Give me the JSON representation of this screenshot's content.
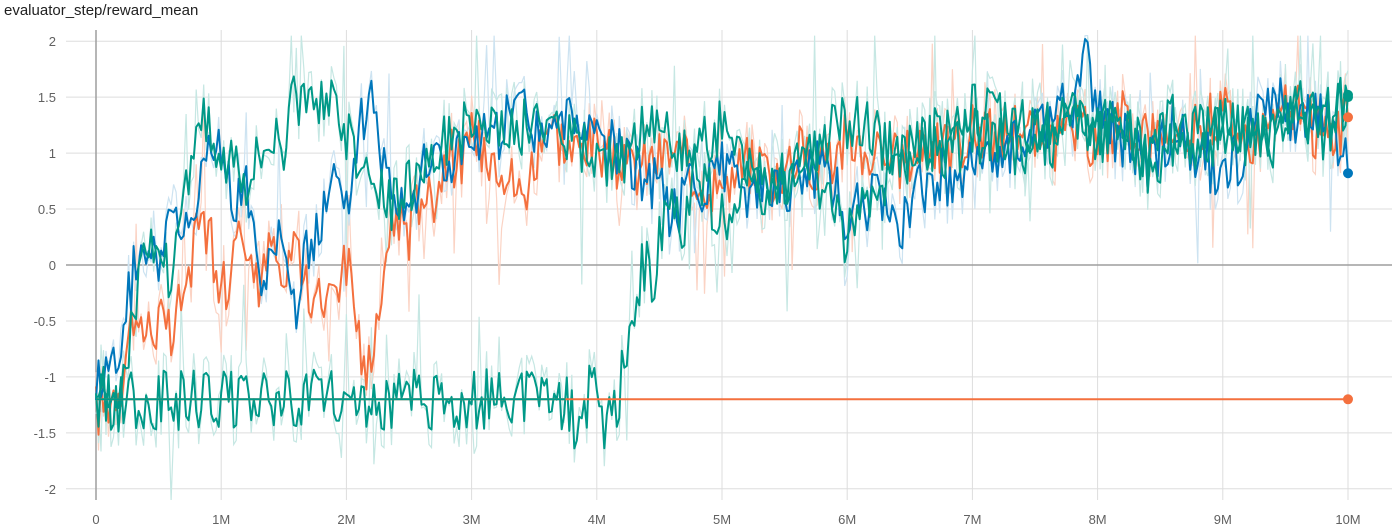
{
  "chart_data": {
    "type": "line",
    "title": "evaluator_step/reward_mean",
    "xlabel": "",
    "ylabel": "",
    "xlim": [
      0,
      10000000
    ],
    "ylim": [
      -2.1,
      2.1
    ],
    "x_ticks": [
      {
        "value": 0,
        "label": "0"
      },
      {
        "value": 1000000,
        "label": "1M"
      },
      {
        "value": 2000000,
        "label": "2M"
      },
      {
        "value": 3000000,
        "label": "3M"
      },
      {
        "value": 4000000,
        "label": "4M"
      },
      {
        "value": 5000000,
        "label": "5M"
      },
      {
        "value": 6000000,
        "label": "6M"
      },
      {
        "value": 7000000,
        "label": "7M"
      },
      {
        "value": 8000000,
        "label": "8M"
      },
      {
        "value": 9000000,
        "label": "9M"
      },
      {
        "value": 10000000,
        "label": "10M"
      }
    ],
    "y_ticks": [
      {
        "value": 2,
        "label": "2"
      },
      {
        "value": 1.5,
        "label": "1.5"
      },
      {
        "value": 1,
        "label": "1"
      },
      {
        "value": 0.5,
        "label": "0.5"
      },
      {
        "value": 0,
        "label": "0"
      },
      {
        "value": -0.5,
        "label": "-0.5"
      },
      {
        "value": -1,
        "label": "-1"
      },
      {
        "value": -1.5,
        "label": "-1.5"
      },
      {
        "value": -2,
        "label": "-2"
      }
    ],
    "grid": true,
    "series": [
      {
        "color": "#f4703e",
        "raw_color": "#fbd3c4",
        "x": [
          0,
          100000,
          200000,
          300000,
          400000,
          500000,
          600000,
          700000,
          800000,
          900000,
          1000000,
          1100000,
          1200000,
          1300000,
          1400000,
          1500000,
          1600000,
          1700000,
          1800000,
          1900000,
          2000000,
          2100000,
          2150000,
          2200000,
          2300000,
          2400000,
          2500000,
          2600000,
          2700000,
          2800000,
          2900000,
          3000000,
          3200000,
          3400000,
          3600000,
          3800000,
          4000000,
          4200000,
          4400000,
          4600000,
          4800000,
          5000000,
          5200000,
          5400000,
          5600000,
          5800000,
          6000000,
          6200000,
          6400000,
          6600000,
          6800000,
          7000000,
          7200000,
          7400000,
          7600000,
          7800000,
          8000000,
          8200000,
          8400000,
          8600000,
          8800000,
          9000000,
          9200000,
          9400000,
          9600000,
          9800000,
          9900000,
          10000000
        ],
        "values": [
          -1.3,
          -1.2,
          -1.0,
          -0.4,
          -0.6,
          -0.5,
          -0.7,
          -0.2,
          0.2,
          0.4,
          -0.3,
          0.1,
          0.3,
          -0.3,
          0.2,
          -0.2,
          0.3,
          -0.4,
          -0.3,
          -0.1,
          0.0,
          -0.6,
          -1.1,
          -0.7,
          -0.1,
          0.5,
          0.3,
          0.7,
          0.6,
          1.0,
          0.9,
          1.1,
          1.0,
          0.6,
          1.3,
          1.0,
          1.1,
          0.8,
          0.9,
          1.0,
          0.8,
          0.7,
          0.9,
          0.8,
          1.0,
          0.9,
          1.1,
          1.0,
          0.9,
          1.1,
          1.0,
          1.2,
          1.1,
          1.3,
          1.0,
          1.2,
          1.1,
          1.3,
          1.2,
          1.0,
          1.2,
          1.4,
          1.1,
          1.3,
          1.4,
          1.1,
          1.2,
          1.32
        ]
      },
      {
        "color": "#0077bb",
        "raw_color": "#cde3f1",
        "x": [
          0,
          100000,
          200000,
          300000,
          400000,
          500000,
          600000,
          700000,
          800000,
          900000,
          1000000,
          1100000,
          1200000,
          1300000,
          1400000,
          1500000,
          1600000,
          1700000,
          1800000,
          1900000,
          2000000,
          2100000,
          2200000,
          2300000,
          2400000,
          2500000,
          2600000,
          2700000,
          2800000,
          2900000,
          3000000,
          3200000,
          3400000,
          3600000,
          3800000,
          4000000,
          4200000,
          4400000,
          4600000,
          4800000,
          5000000,
          5200000,
          5400000,
          5600000,
          5800000,
          6000000,
          6200000,
          6400000,
          6600000,
          6800000,
          7000000,
          7200000,
          7400000,
          7600000,
          7800000,
          7900000,
          8000000,
          8200000,
          8400000,
          8600000,
          8800000,
          9000000,
          9200000,
          9400000,
          9600000,
          9800000,
          10000000
        ],
        "values": [
          -1.0,
          -0.9,
          -0.8,
          0.0,
          0.2,
          0.0,
          0.4,
          0.1,
          0.7,
          1.1,
          1.0,
          0.6,
          0.8,
          -0.2,
          0.1,
          0.3,
          -0.5,
          0.2,
          0.4,
          0.7,
          0.5,
          1.2,
          1.5,
          0.9,
          0.7,
          0.6,
          0.8,
          1.0,
          0.9,
          1.0,
          1.1,
          1.2,
          1.4,
          1.1,
          1.3,
          1.2,
          1.0,
          0.8,
          0.5,
          0.7,
          0.9,
          0.6,
          0.8,
          0.7,
          0.9,
          0.4,
          0.6,
          0.3,
          0.7,
          0.8,
          0.9,
          1.0,
          1.1,
          1.3,
          1.5,
          1.95,
          1.4,
          1.1,
          0.9,
          1.2,
          1.0,
          0.8,
          1.1,
          1.5,
          1.2,
          1.4,
          0.82
        ]
      },
      {
        "color": "#009988",
        "raw_color": "#c6e7e3",
        "x": [
          0,
          100000,
          200000,
          300000,
          400000,
          500000,
          600000,
          700000,
          800000,
          900000,
          1000000,
          1100000,
          1200000,
          1300000,
          1400000,
          1500000,
          1600000,
          1700000,
          1800000,
          1900000,
          2000000,
          2100000,
          2200000,
          2300000,
          2400000,
          2500000,
          2600000,
          2700000,
          2800000,
          2900000,
          3000000,
          3200000,
          3400000,
          3600000,
          3800000,
          4000000,
          4200000,
          4400000,
          4600000,
          4800000,
          5000000,
          5200000,
          5400000,
          5600000,
          5800000,
          6000000,
          6200000,
          6400000,
          6600000,
          6800000,
          7000000,
          7200000,
          7400000,
          7600000,
          7800000,
          8000000,
          8200000,
          8400000,
          8600000,
          8800000,
          9000000,
          9200000,
          9400000,
          9600000,
          9800000,
          10000000
        ],
        "values": [
          -1.1,
          -1.2,
          -1.3,
          -0.3,
          0.1,
          0.2,
          -0.1,
          0.5,
          1.4,
          1.2,
          0.9,
          1.1,
          0.8,
          1.0,
          1.2,
          1.1,
          1.5,
          1.3,
          1.6,
          1.4,
          1.2,
          1.0,
          0.8,
          0.6,
          0.5,
          0.7,
          0.9,
          1.0,
          1.1,
          1.2,
          1.3,
          1.1,
          1.2,
          1.3,
          1.1,
          1.0,
          0.9,
          1.2,
          1.1,
          1.0,
          1.3,
          0.9,
          0.7,
          0.9,
          1.1,
          1.3,
          1.2,
          1.0,
          1.1,
          1.2,
          1.4,
          1.3,
          1.2,
          1.1,
          1.3,
          1.2,
          1.3,
          0.9,
          1.0,
          1.2,
          1.3,
          1.1,
          1.2,
          1.4,
          1.3,
          1.5
        ]
      },
      {
        "color": "#009988",
        "raw_color": "#c6e7e3",
        "x": [
          0,
          3750000,
          3800000,
          3850000,
          3900000,
          3950000,
          4000000,
          4050000,
          4100000,
          4150000,
          4200000,
          4250000,
          4300000,
          4350000,
          4400000,
          4450000,
          4500000,
          4600000,
          4700000,
          4800000,
          4900000,
          5000000,
          5200000,
          5400000,
          5600000,
          5800000,
          6000000,
          6200000,
          6400000,
          6600000,
          6800000,
          7000000,
          7200000,
          7400000,
          7600000,
          7800000,
          8000000,
          8200000,
          8400000,
          8600000,
          8800000,
          9000000,
          9200000,
          9400000,
          9600000,
          9800000,
          10000000
        ],
        "values": [
          -1.2,
          -1.2,
          -1.35,
          -1.55,
          -1.3,
          -1.1,
          -1.2,
          -1.4,
          -1.25,
          -1.3,
          -1.0,
          -0.8,
          -0.5,
          -0.1,
          0.0,
          -0.4,
          0.2,
          0.5,
          0.3,
          0.9,
          0.6,
          0.4,
          0.8,
          0.6,
          0.9,
          0.7,
          0.2,
          0.7,
          0.9,
          1.1,
          1.0,
          1.2,
          1.1,
          1.0,
          1.2,
          1.3,
          1.1,
          1.2,
          1.0,
          1.3,
          1.1,
          1.2,
          1.3,
          1.1,
          1.4,
          1.2,
          1.52
        ]
      },
      {
        "color": "#f4703e",
        "raw_color": "#fbd3c4",
        "x": [
          0,
          3800000,
          10000000
        ],
        "values": [
          -1.2,
          -1.2,
          -1.2
        ]
      },
      {
        "color": "#009988",
        "raw_color": "#c6e7e3",
        "x": [
          0,
          3750000
        ],
        "values": [
          -1.2,
          -1.2
        ]
      }
    ]
  }
}
